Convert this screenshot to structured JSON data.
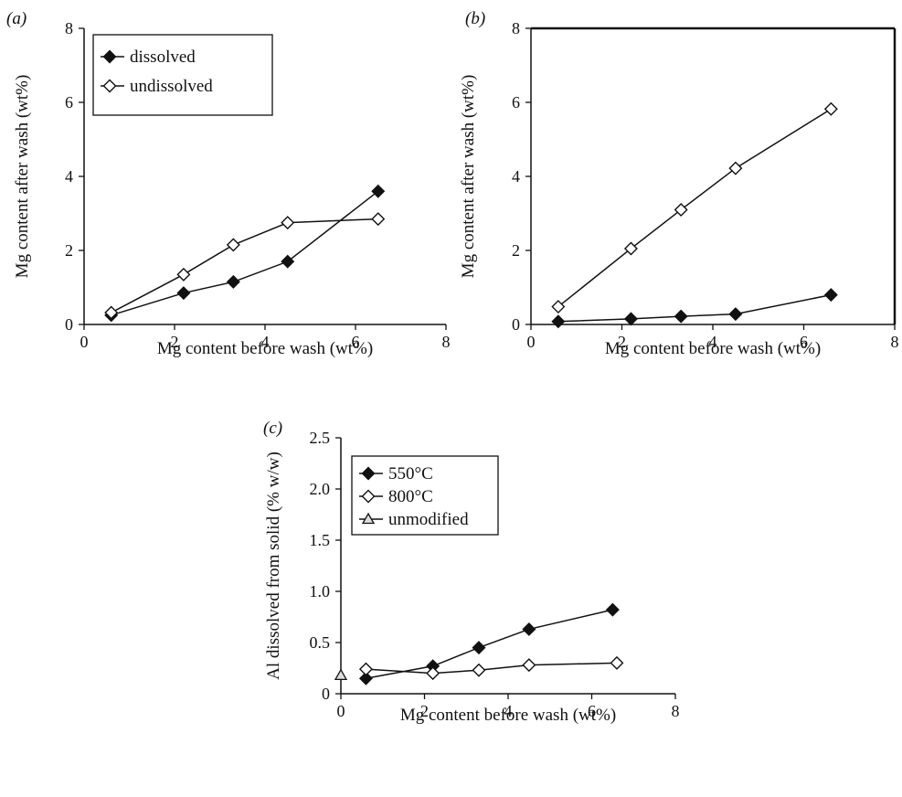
{
  "chart_data": [
    {
      "id": "a",
      "type": "line",
      "panel_label": "(a)",
      "xlabel": "Mg content before wash (wt%)",
      "ylabel": "Mg content after wash (wt%)",
      "xlim": [
        0,
        8
      ],
      "ylim": [
        0,
        8
      ],
      "xticks": [
        0,
        2,
        4,
        6,
        8
      ],
      "yticks": [
        0,
        2,
        4,
        6,
        8
      ],
      "grid": false,
      "legend_position": "top-left",
      "series": [
        {
          "name": "dissolved",
          "marker": "filled-diamond",
          "x": [
            0.6,
            2.2,
            3.3,
            4.5,
            6.5
          ],
          "y": [
            0.25,
            0.85,
            1.15,
            1.7,
            3.6
          ]
        },
        {
          "name": "undissolved",
          "marker": "open-diamond",
          "x": [
            0.6,
            2.2,
            3.3,
            4.5,
            6.5
          ],
          "y": [
            0.32,
            1.35,
            2.15,
            2.75,
            2.85
          ]
        }
      ]
    },
    {
      "id": "b",
      "type": "line",
      "panel_label": "(b)",
      "xlabel": "Mg content before wash (wt%)",
      "ylabel": "Mg content after wash (wt%)",
      "xlim": [
        0,
        8
      ],
      "ylim": [
        0,
        8
      ],
      "xticks": [
        0,
        2,
        4,
        6,
        8
      ],
      "yticks": [
        0,
        2,
        4,
        6,
        8
      ],
      "grid": false,
      "series": [
        {
          "marker": "filled-diamond",
          "x": [
            0.6,
            2.2,
            3.3,
            4.5,
            6.6
          ],
          "y": [
            0.08,
            0.15,
            0.22,
            0.28,
            0.8
          ]
        },
        {
          "marker": "open-diamond",
          "x": [
            0.6,
            2.2,
            3.3,
            4.5,
            6.6
          ],
          "y": [
            0.48,
            2.05,
            3.1,
            4.22,
            5.82
          ]
        }
      ]
    },
    {
      "id": "c",
      "type": "line",
      "panel_label": "(c)",
      "xlabel": "Mg content before wash (wt%)",
      "ylabel": "Al dissolved from solid (% w/w)",
      "xlim": [
        0,
        8
      ],
      "ylim": [
        0,
        2.5
      ],
      "xticks": [
        0,
        2,
        4,
        6,
        8
      ],
      "yticks": [
        0,
        0.5,
        1.0,
        1.5,
        2.0,
        2.5
      ],
      "ytick_labels": [
        "0",
        "0.5",
        "1.0",
        "1.5",
        "2.0",
        "2.5"
      ],
      "grid": false,
      "legend_position": "top-left",
      "series": [
        {
          "name": "550°C",
          "marker": "filled-diamond",
          "x": [
            0.6,
            2.2,
            3.3,
            4.5,
            6.5
          ],
          "y": [
            0.15,
            0.27,
            0.45,
            0.63,
            0.82
          ]
        },
        {
          "name": "800°C",
          "marker": "open-diamond",
          "x": [
            0.6,
            2.2,
            3.3,
            4.5,
            6.6
          ],
          "y": [
            0.24,
            0.2,
            0.23,
            0.28,
            0.3
          ]
        },
        {
          "name": "unmodified",
          "marker": "open-triangle",
          "x": [
            0
          ],
          "y": [
            0.18
          ]
        }
      ]
    }
  ]
}
